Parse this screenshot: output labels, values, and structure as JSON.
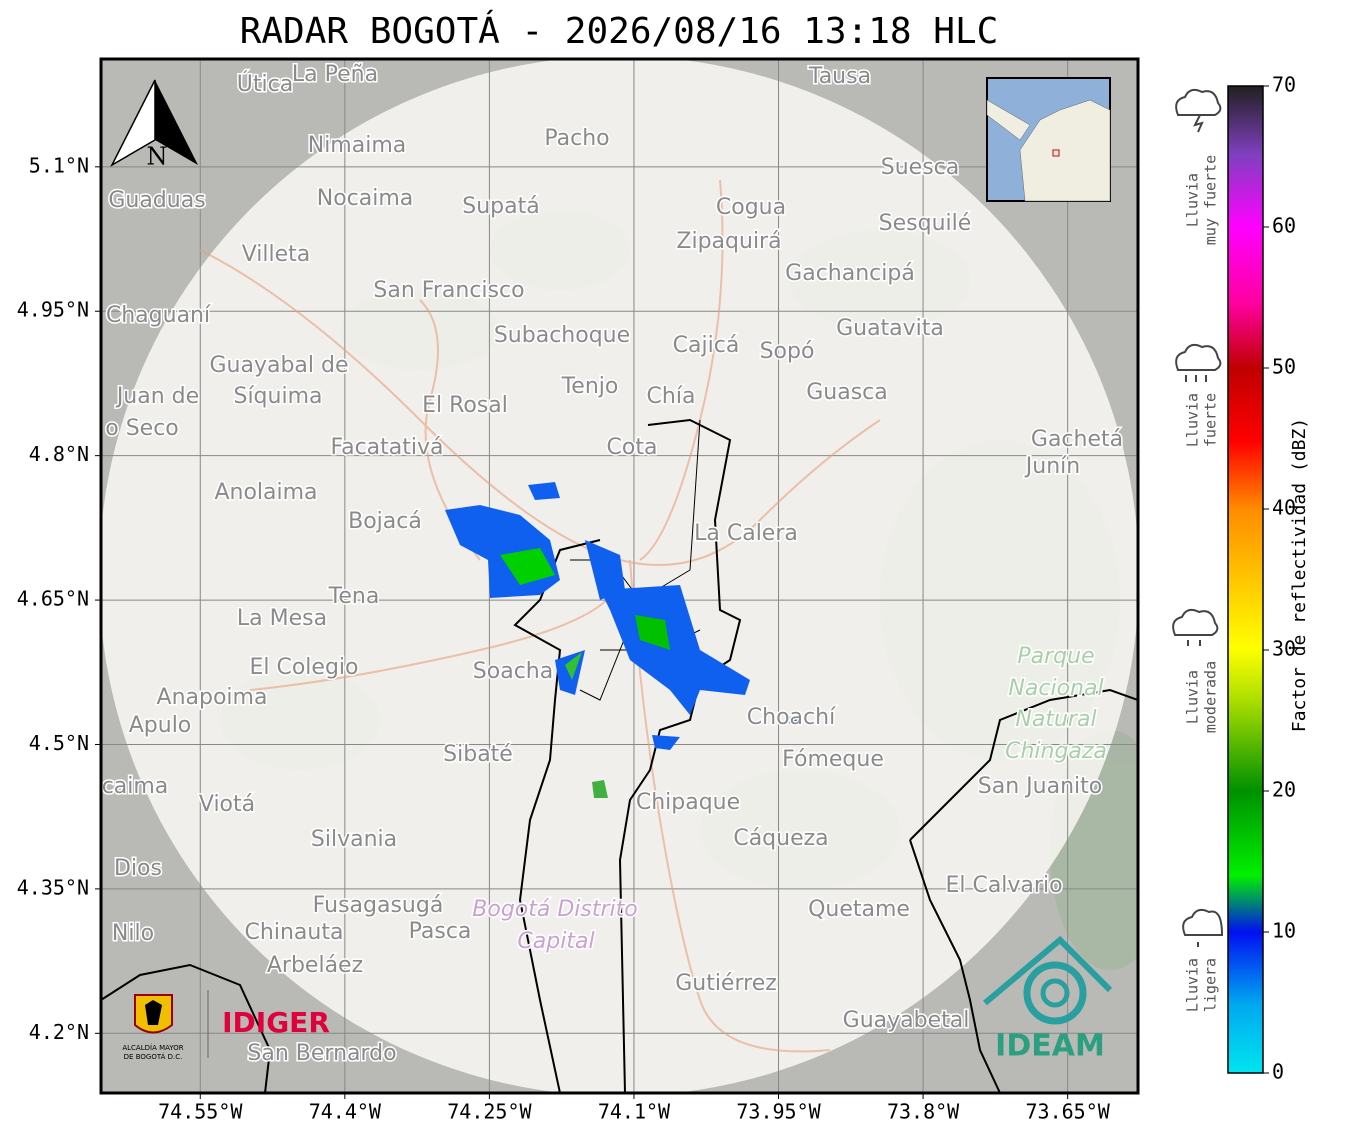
{
  "title": "RADAR BOGOTÁ - 2026/08/16 13:18 HLC",
  "north": "N",
  "map": {
    "xlim": [
      -74.653,
      -73.577
    ],
    "ylim": [
      4.138,
      5.212
    ],
    "xticks": [
      {
        "value": -74.55,
        "label": "74.55°W"
      },
      {
        "value": -74.4,
        "label": "74.4°W"
      },
      {
        "value": -74.25,
        "label": "74.25°W"
      },
      {
        "value": -74.1,
        "label": "74.1°W"
      },
      {
        "value": -73.95,
        "label": "73.95°W"
      },
      {
        "value": -73.8,
        "label": "73.8°W"
      },
      {
        "value": -73.65,
        "label": "73.65°W"
      }
    ],
    "yticks": [
      {
        "value": 5.1,
        "label": "5.1°N"
      },
      {
        "value": 4.95,
        "label": "4.95°N"
      },
      {
        "value": 4.8,
        "label": "4.8°N"
      },
      {
        "value": 4.65,
        "label": "4.65°N"
      },
      {
        "value": 4.5,
        "label": "4.5°N"
      },
      {
        "value": 4.35,
        "label": "4.35°N"
      },
      {
        "value": 4.2,
        "label": "4.2°N"
      }
    ],
    "grid": true
  },
  "places": [
    "Útica",
    "La Peña",
    "Tausa",
    "Pacho",
    "Nimaima",
    "Guaduas",
    "Nocaima",
    "Supatá",
    "Cogua",
    "Suesca",
    "Sesquilé",
    "Zipaquirá",
    "Villeta",
    "Gachancipá",
    "San Francisco",
    "Chaguaní",
    "Guatavita",
    "Subachoque",
    "Cajicá",
    "Sopó",
    "Guayabal de",
    "Síquima",
    "Juan de",
    "o Seco",
    "Tenjo",
    "Chía",
    "Guasca",
    "El Rosal",
    "Facatativá",
    "Cota",
    "Gachetá",
    "Junín",
    "Anolaima",
    "Bojacá",
    "La Calera",
    "Tena",
    "La Mesa",
    "El Colegio",
    "Soacha",
    "Parque",
    "Nacional",
    "Natural",
    "Chingaza",
    "Anapoima",
    "Apulo",
    "Choachí",
    "Sibaté",
    "Fómeque",
    "San Juanito",
    "caima",
    "Viotá",
    "Chipaque",
    "Silvania",
    "Cáqueza",
    "Dios",
    "El Calvario",
    "Fusagasugá",
    "Bogotá Distrito",
    "Capital",
    "Quetame",
    "Nilo",
    "Chinauta",
    "Pasca",
    "Arbeláez",
    "Gutiérrez",
    "Guayabetal",
    "San Bernardo"
  ],
  "logos": {
    "alcaldia": [
      "ALCALDÍA MAYOR",
      "DE BOGOTÁ D.C."
    ],
    "idiger": "IDIGER",
    "ideam": "IDEAM"
  },
  "colorbar": {
    "label": "Factor de reflectividad (dBZ)",
    "lim": [
      0,
      70
    ],
    "ticks": [
      0,
      10,
      20,
      30,
      40,
      50,
      60,
      70
    ],
    "categories": [
      [
        "Lluvia",
        "muy fuerte"
      ],
      [
        "Lluvia",
        "fuerte"
      ],
      [
        "Lluvia",
        "moderada"
      ],
      [
        "Lluvia",
        "ligera"
      ]
    ]
  }
}
